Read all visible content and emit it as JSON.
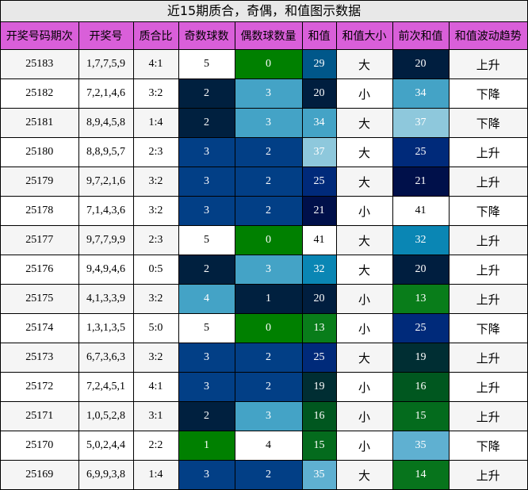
{
  "title": "近15期质合，奇偶，和值图示数据",
  "headers": [
    "开奖号码期次",
    "开奖号",
    "质合比",
    "奇数球数",
    "偶数球数量",
    "和值",
    "和值大小",
    "前次和值",
    "和值波动趋势"
  ],
  "colors": {
    "header_bg": "#d95fd9",
    "title_bg": "#e8e8e8",
    "row_even_bg": "#f5f5f5",
    "row_odd_bg": "#ffffff"
  },
  "rows": [
    {
      "period": "25183",
      "numbers": "1,7,7,5,9",
      "ratio": "4:1",
      "odd": {
        "v": "5",
        "c": "#ffffff"
      },
      "even": {
        "v": "0",
        "c": "#008000"
      },
      "sum": {
        "v": "29",
        "c": "#00578a"
      },
      "size": "大",
      "prev": {
        "v": "20",
        "c": "#001e3f"
      },
      "trend": "上升"
    },
    {
      "period": "25182",
      "numbers": "7,2,1,4,6",
      "ratio": "3:2",
      "odd": {
        "v": "2",
        "c": "#00203f"
      },
      "even": {
        "v": "3",
        "c": "#44a3c6"
      },
      "sum": {
        "v": "20",
        "c": "#001e3f"
      },
      "size": "小",
      "prev": {
        "v": "34",
        "c": "#44a3c6"
      },
      "trend": "下降"
    },
    {
      "period": "25181",
      "numbers": "8,9,4,5,8",
      "ratio": "1:4",
      "odd": {
        "v": "2",
        "c": "#00203f"
      },
      "even": {
        "v": "3",
        "c": "#44a3c6"
      },
      "sum": {
        "v": "34",
        "c": "#44a3c6"
      },
      "size": "大",
      "prev": {
        "v": "37",
        "c": "#8ec8dc"
      },
      "trend": "下降"
    },
    {
      "period": "25180",
      "numbers": "8,8,9,5,7",
      "ratio": "2:3",
      "odd": {
        "v": "3",
        "c": "#023f86"
      },
      "even": {
        "v": "2",
        "c": "#023f86"
      },
      "sum": {
        "v": "37",
        "c": "#8ec8dc"
      },
      "size": "大",
      "prev": {
        "v": "25",
        "c": "#002a7a"
      },
      "trend": "上升"
    },
    {
      "period": "25179",
      "numbers": "9,7,2,1,6",
      "ratio": "3:2",
      "odd": {
        "v": "3",
        "c": "#023f86"
      },
      "even": {
        "v": "2",
        "c": "#023f86"
      },
      "sum": {
        "v": "25",
        "c": "#002a7a"
      },
      "size": "大",
      "prev": {
        "v": "21",
        "c": "#00104a"
      },
      "trend": "上升"
    },
    {
      "period": "25178",
      "numbers": "7,1,4,3,6",
      "ratio": "3:2",
      "odd": {
        "v": "3",
        "c": "#023f86"
      },
      "even": {
        "v": "2",
        "c": "#023f86"
      },
      "sum": {
        "v": "21",
        "c": "#00104a"
      },
      "size": "小",
      "prev": {
        "v": "41",
        "c": "#ffffff"
      },
      "trend": "下降"
    },
    {
      "period": "25177",
      "numbers": "9,7,7,9,9",
      "ratio": "2:3",
      "odd": {
        "v": "5",
        "c": "#ffffff"
      },
      "even": {
        "v": "0",
        "c": "#008000"
      },
      "sum": {
        "v": "41",
        "c": "#ffffff"
      },
      "size": "大",
      "prev": {
        "v": "32",
        "c": "#0a86b4"
      },
      "trend": "上升"
    },
    {
      "period": "25176",
      "numbers": "9,4,9,4,6",
      "ratio": "0:5",
      "odd": {
        "v": "2",
        "c": "#00203f"
      },
      "even": {
        "v": "3",
        "c": "#44a3c6"
      },
      "sum": {
        "v": "32",
        "c": "#0a86b4"
      },
      "size": "大",
      "prev": {
        "v": "20",
        "c": "#001e3f"
      },
      "trend": "上升"
    },
    {
      "period": "25175",
      "numbers": "4,1,3,3,9",
      "ratio": "3:2",
      "odd": {
        "v": "4",
        "c": "#44a3c6"
      },
      "even": {
        "v": "1",
        "c": "#00203f"
      },
      "sum": {
        "v": "20",
        "c": "#001e3f"
      },
      "size": "小",
      "prev": {
        "v": "13",
        "c": "#097d1a"
      },
      "trend": "上升"
    },
    {
      "period": "25174",
      "numbers": "1,3,1,3,5",
      "ratio": "5:0",
      "odd": {
        "v": "5",
        "c": "#ffffff"
      },
      "even": {
        "v": "0",
        "c": "#008000"
      },
      "sum": {
        "v": "13",
        "c": "#097d1a"
      },
      "size": "小",
      "prev": {
        "v": "25",
        "c": "#002a7a"
      },
      "trend": "下降"
    },
    {
      "period": "25173",
      "numbers": "6,7,3,6,3",
      "ratio": "3:2",
      "odd": {
        "v": "3",
        "c": "#023f86"
      },
      "even": {
        "v": "2",
        "c": "#023f86"
      },
      "sum": {
        "v": "25",
        "c": "#002a7a"
      },
      "size": "大",
      "prev": {
        "v": "19",
        "c": "#002e33"
      },
      "trend": "上升"
    },
    {
      "period": "25172",
      "numbers": "7,2,4,5,1",
      "ratio": "4:1",
      "odd": {
        "v": "3",
        "c": "#023f86"
      },
      "even": {
        "v": "2",
        "c": "#023f86"
      },
      "sum": {
        "v": "19",
        "c": "#002e33"
      },
      "size": "小",
      "prev": {
        "v": "16",
        "c": "#00571f"
      },
      "trend": "上升"
    },
    {
      "period": "25171",
      "numbers": "1,0,5,2,8",
      "ratio": "3:1",
      "odd": {
        "v": "2",
        "c": "#00203f"
      },
      "even": {
        "v": "3",
        "c": "#44a3c6"
      },
      "sum": {
        "v": "16",
        "c": "#00571f"
      },
      "size": "小",
      "prev": {
        "v": "15",
        "c": "#046b1d"
      },
      "trend": "上升"
    },
    {
      "period": "25170",
      "numbers": "5,0,2,4,4",
      "ratio": "2:2",
      "odd": {
        "v": "1",
        "c": "#008000"
      },
      "even": {
        "v": "4",
        "c": "#ffffff"
      },
      "sum": {
        "v": "15",
        "c": "#046b1d"
      },
      "size": "小",
      "prev": {
        "v": "35",
        "c": "#5fb0d1"
      },
      "trend": "下降"
    },
    {
      "period": "25169",
      "numbers": "6,9,9,3,8",
      "ratio": "1:4",
      "odd": {
        "v": "3",
        "c": "#023f86"
      },
      "even": {
        "v": "2",
        "c": "#023f86"
      },
      "sum": {
        "v": "35",
        "c": "#5fb0d1"
      },
      "size": "大",
      "prev": {
        "v": "14",
        "c": "#07741c"
      },
      "trend": "上升"
    }
  ]
}
